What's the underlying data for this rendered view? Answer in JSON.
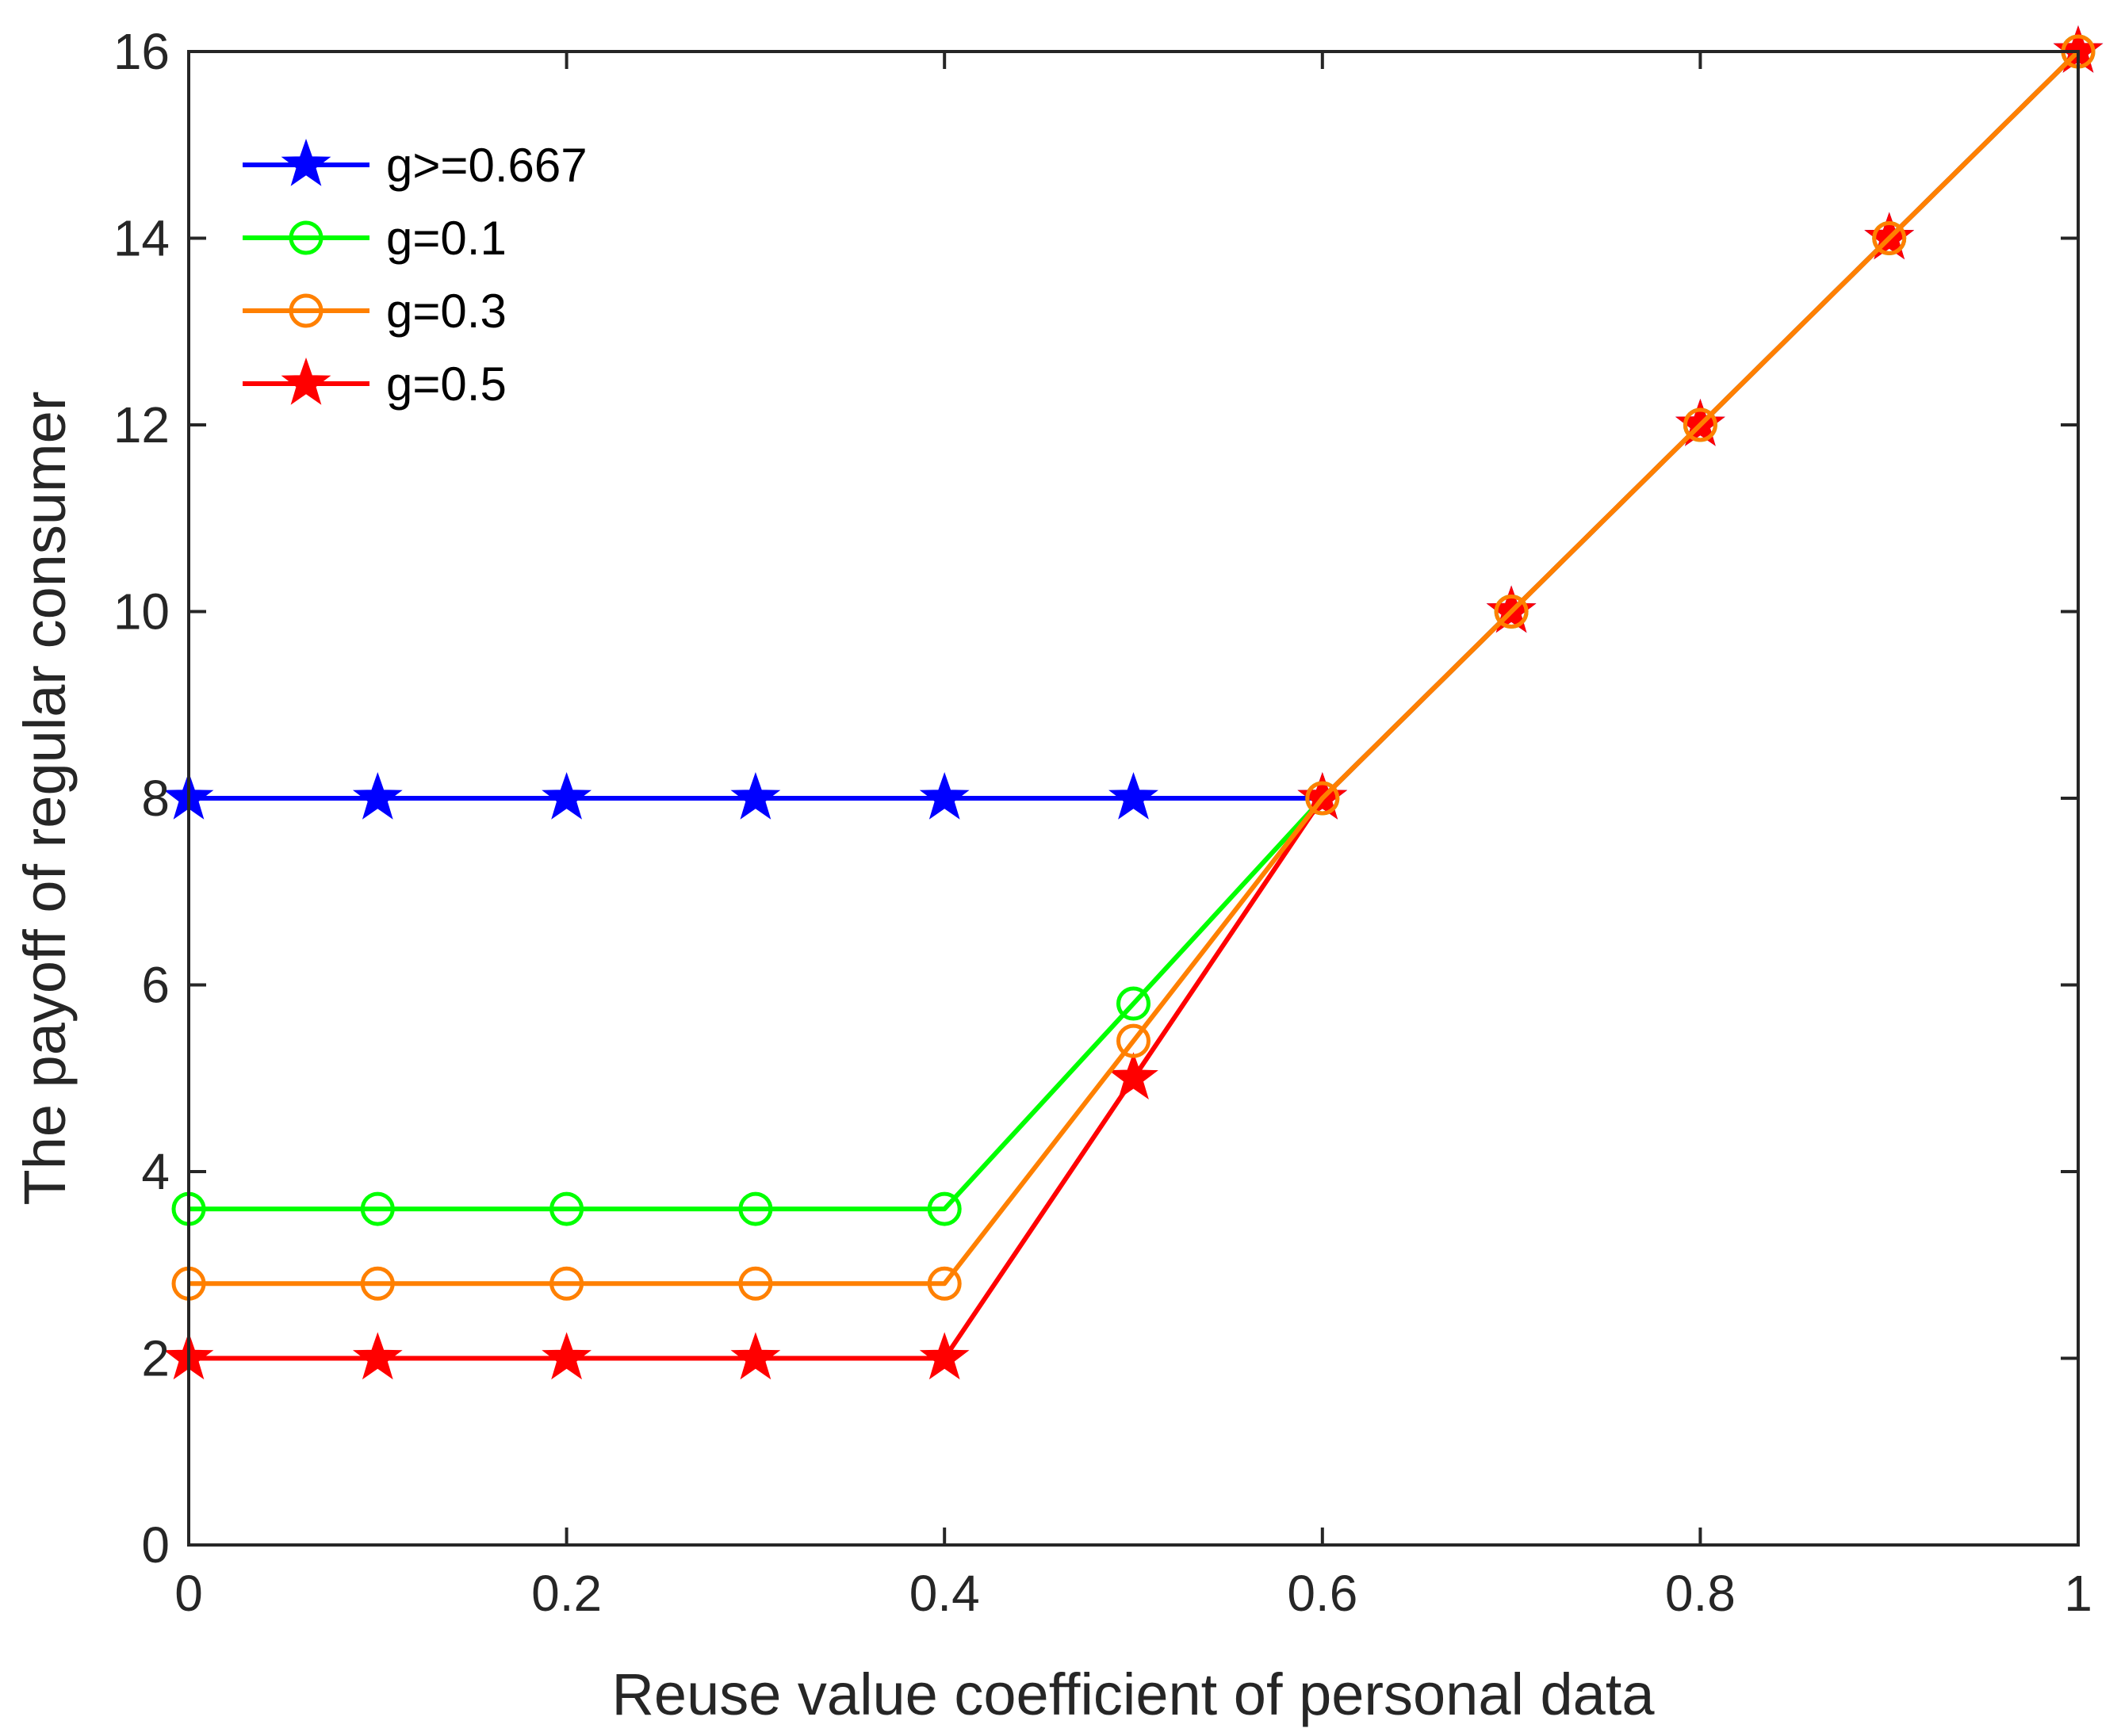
{
  "chart_data": {
    "type": "line",
    "title": "",
    "xlabel": "Reuse value coefficient of personal data",
    "ylabel": "The payoff of regular consumer",
    "xlim": [
      0,
      1
    ],
    "ylim": [
      0,
      16
    ],
    "xticks": [
      0,
      0.2,
      0.4,
      0.6,
      0.8,
      1
    ],
    "xtick_labels": [
      "0",
      "0.2",
      "0.4",
      "0.6",
      "0.8",
      "1"
    ],
    "yticks": [
      0,
      2,
      4,
      6,
      8,
      10,
      12,
      14,
      16
    ],
    "ytick_labels": [
      "0",
      "2",
      "4",
      "6",
      "8",
      "10",
      "12",
      "14",
      "16"
    ],
    "grid": false,
    "legend_position": "top-left",
    "x": [
      0,
      0.1,
      0.2,
      0.3,
      0.4,
      0.5,
      0.6,
      0.7,
      0.8,
      0.9,
      1.0
    ],
    "series": [
      {
        "name": "g>=0.667",
        "color": "#0000ff",
        "marker": "star-icon",
        "values": [
          8,
          8,
          8,
          8,
          8,
          8,
          8,
          10,
          12,
          14,
          16
        ]
      },
      {
        "name": "g=0.1",
        "color": "#00ff00",
        "marker": "circle-icon",
        "values": [
          3.6,
          3.6,
          3.6,
          3.6,
          3.6,
          5.8,
          8,
          10,
          12,
          14,
          16
        ]
      },
      {
        "name": "g=0.5",
        "color": "#ff0000",
        "marker": "star-icon",
        "values": [
          2,
          2,
          2,
          2,
          2,
          5,
          8,
          10,
          12,
          14,
          16
        ]
      },
      {
        "name": "g=0.3",
        "color": "#ff8000",
        "marker": "circle-icon",
        "values": [
          2.8,
          2.8,
          2.8,
          2.8,
          2.8,
          5.4,
          8,
          10,
          12,
          14,
          16
        ]
      }
    ],
    "legend_order": [
      "g>=0.667",
      "g=0.1",
      "g=0.3",
      "g=0.5"
    ]
  }
}
